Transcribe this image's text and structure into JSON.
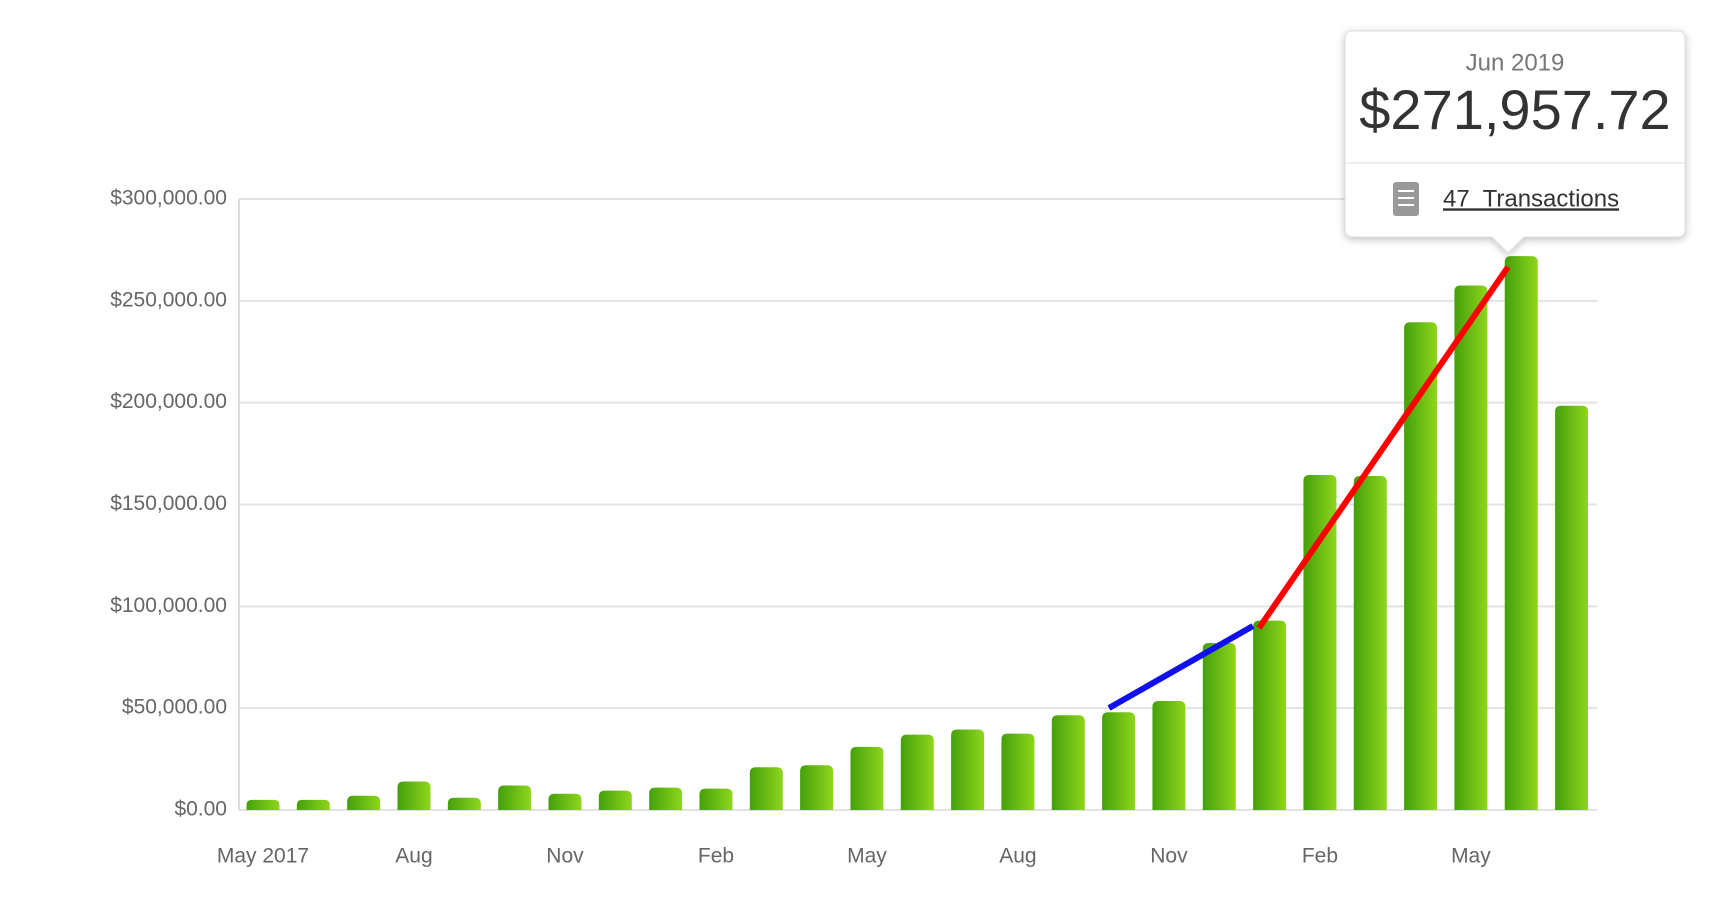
{
  "chart_data": {
    "type": "bar",
    "categories": [
      "May 2017",
      null,
      null,
      "Aug",
      null,
      null,
      "Nov",
      null,
      null,
      "Feb",
      null,
      null,
      "May",
      null,
      null,
      "Aug",
      null,
      null,
      "Nov",
      null,
      null,
      "Feb",
      null,
      null,
      "May",
      null,
      null
    ],
    "values": [
      5000,
      5000,
      7000,
      14000,
      6000,
      12000,
      8000,
      9500,
      11000,
      10500,
      21000,
      22000,
      31000,
      37000,
      39500,
      37500,
      46500,
      48000,
      53500,
      82000,
      93000,
      164500,
      164000,
      239500,
      257500,
      271957.72,
      198500
    ],
    "color": [
      "#44a00a",
      "#8fd61c"
    ],
    "ylim": [
      0,
      300000
    ],
    "yticks": [
      {
        "value": 0,
        "label": "$0.00"
      },
      {
        "value": 50000,
        "label": "$50,000.00"
      },
      {
        "value": 100000,
        "label": "$100,000.00"
      },
      {
        "value": 150000,
        "label": "$150,000.00"
      },
      {
        "value": 200000,
        "label": "$200,000.00"
      },
      {
        "value": 250000,
        "label": "$250,000.00"
      },
      {
        "value": 300000,
        "label": "$300,000.00"
      }
    ],
    "grid": true,
    "tooltip": {
      "date": "Jun 2019",
      "amount": "$271,957.72",
      "link": "47  Transactions"
    }
  }
}
